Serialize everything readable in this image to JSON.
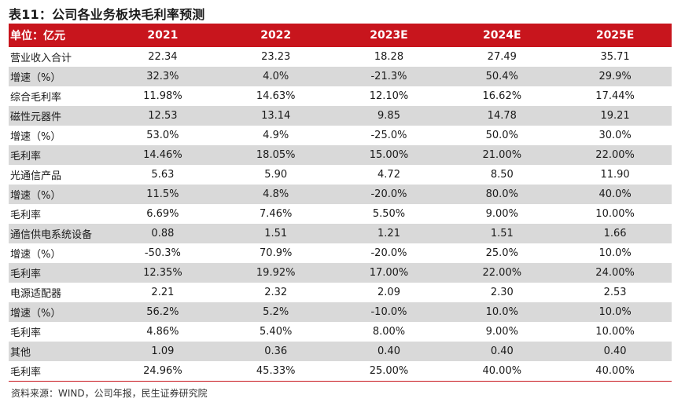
{
  "title": "表11：公司各业务板块毛利率预测",
  "header": [
    "单位：亿元",
    "2021",
    "2022",
    "2023E",
    "2024E",
    "2025E"
  ],
  "rows": [
    {
      "label": "营业收入合计",
      "values": [
        "22.34",
        "23.23",
        "18.28",
        "27.49",
        "35.71"
      ]
    },
    {
      "label": "增速（%）",
      "values": [
        "32.3%",
        "4.0%",
        "-21.3%",
        "50.4%",
        "29.9%"
      ]
    },
    {
      "label": "综合毛利率",
      "values": [
        "11.98%",
        "14.63%",
        "12.10%",
        "16.62%",
        "17.44%"
      ]
    },
    {
      "label": "磁性元器件",
      "values": [
        "12.53",
        "13.14",
        "9.85",
        "14.78",
        "19.21"
      ]
    },
    {
      "label": "增速（%）",
      "values": [
        "53.0%",
        "4.9%",
        "-25.0%",
        "50.0%",
        "30.0%"
      ]
    },
    {
      "label": "毛利率",
      "values": [
        "14.46%",
        "18.05%",
        "15.00%",
        "21.00%",
        "22.00%"
      ]
    },
    {
      "label": "光通信产品",
      "values": [
        "5.63",
        "5.90",
        "4.72",
        "8.50",
        "11.90"
      ]
    },
    {
      "label": "增速（%）",
      "values": [
        "11.5%",
        "4.8%",
        "-20.0%",
        "80.0%",
        "40.0%"
      ]
    },
    {
      "label": "毛利率",
      "values": [
        "6.69%",
        "7.46%",
        "5.50%",
        "9.00%",
        "10.00%"
      ]
    },
    {
      "label": "通信供电系统设备",
      "values": [
        "0.88",
        "1.51",
        "1.21",
        "1.51",
        "1.66"
      ]
    },
    {
      "label": "增速（%）",
      "values": [
        "-50.3%",
        "70.9%",
        "-20.0%",
        "25.0%",
        "10.0%"
      ]
    },
    {
      "label": "毛利率",
      "values": [
        "12.35%",
        "19.92%",
        "17.00%",
        "22.00%",
        "24.00%"
      ]
    },
    {
      "label": "电源适配器",
      "values": [
        "2.21",
        "2.32",
        "2.09",
        "2.30",
        "2.53"
      ]
    },
    {
      "label": "增速（%）",
      "values": [
        "56.2%",
        "5.2%",
        "-10.0%",
        "10.0%",
        "10.0%"
      ]
    },
    {
      "label": "毛利率",
      "values": [
        "4.86%",
        "5.40%",
        "8.00%",
        "9.00%",
        "10.00%"
      ]
    },
    {
      "label": "其他",
      "values": [
        "1.09",
        "0.36",
        "0.40",
        "0.40",
        "0.40"
      ]
    },
    {
      "label": "毛利率",
      "values": [
        "24.96%",
        "45.33%",
        "25.00%",
        "40.00%",
        "40.00%"
      ]
    }
  ],
  "source": "资料来源：WIND，公司年报，民生证券研究院",
  "colors": {
    "header_bg": "#c8151d",
    "shaded_row": "#d9d9d9"
  }
}
